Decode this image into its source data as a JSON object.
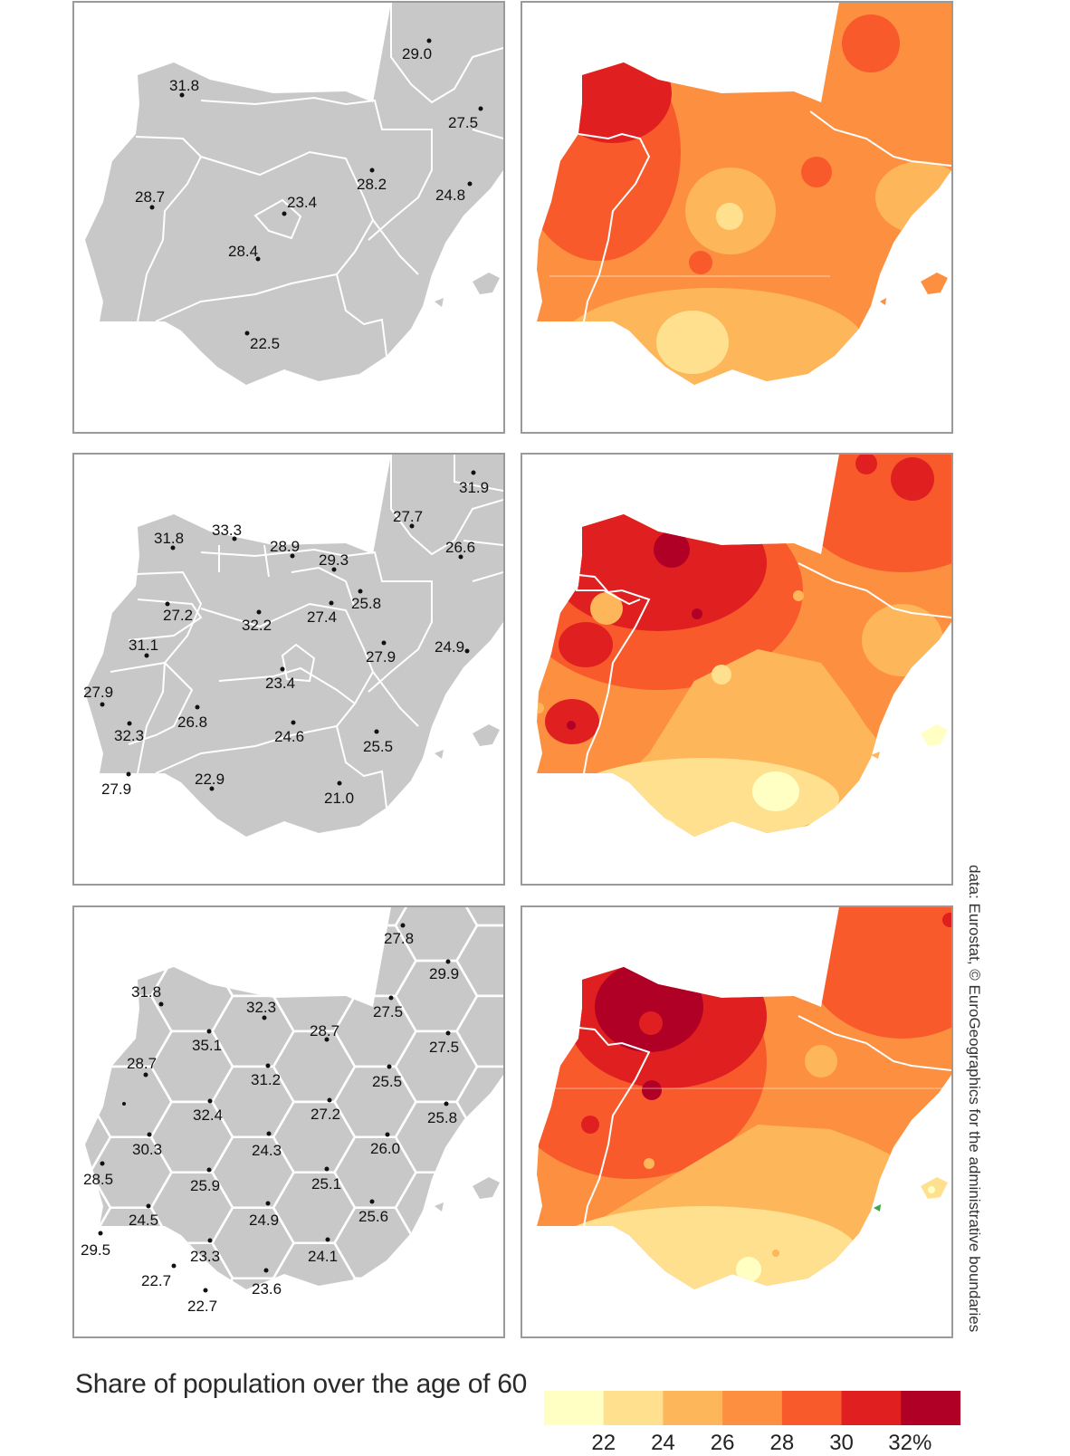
{
  "title": "Share of population over the age of 60",
  "credit": "data: Eurostat, © EuroGeographics for the administrative boundaries",
  "legend": {
    "colors": [
      "#ffffc4",
      "#fee08e",
      "#fdb65a",
      "#fc9040",
      "#f85a2c",
      "#e02020",
      "#b00026"
    ],
    "ticks": [
      "22",
      "24",
      "26",
      "28",
      "30",
      "32%"
    ]
  },
  "maps": {
    "nuts1": [
      {
        "v": "31.8"
      },
      {
        "v": "29.0"
      },
      {
        "v": "27.5"
      },
      {
        "v": "28.2"
      },
      {
        "v": "24.8"
      },
      {
        "v": "28.7"
      },
      {
        "v": "23.4"
      },
      {
        "v": "28.4"
      },
      {
        "v": "22.5"
      }
    ],
    "nuts2": [
      {
        "v": "31.9"
      },
      {
        "v": "27.7"
      },
      {
        "v": "31.8"
      },
      {
        "v": "33.3"
      },
      {
        "v": "28.9"
      },
      {
        "v": "29.3"
      },
      {
        "v": "26.6"
      },
      {
        "v": "27.2"
      },
      {
        "v": "32.2"
      },
      {
        "v": "27.4"
      },
      {
        "v": "25.8"
      },
      {
        "v": "31.1"
      },
      {
        "v": "27.9"
      },
      {
        "v": "24.9"
      },
      {
        "v": "27.9"
      },
      {
        "v": "23.4"
      },
      {
        "v": "32.3"
      },
      {
        "v": "26.8"
      },
      {
        "v": "24.6"
      },
      {
        "v": "25.5"
      },
      {
        "v": "27.9"
      },
      {
        "v": "22.9"
      },
      {
        "v": "21.0"
      }
    ],
    "hex": [
      {
        "v": "27.8"
      },
      {
        "v": "29.9"
      },
      {
        "v": "31.8"
      },
      {
        "v": "32.3"
      },
      {
        "v": "27.5"
      },
      {
        "v": "35.1"
      },
      {
        "v": "28.7"
      },
      {
        "v": "27.5"
      },
      {
        "v": "28.7"
      },
      {
        "v": "31.2"
      },
      {
        "v": "25.5"
      },
      {
        "v": "32.4"
      },
      {
        "v": "27.2"
      },
      {
        "v": "25.8"
      },
      {
        "v": "30.3"
      },
      {
        "v": "24.3"
      },
      {
        "v": "26.0"
      },
      {
        "v": "28.5"
      },
      {
        "v": "25.9"
      },
      {
        "v": "25.1"
      },
      {
        "v": "24.5"
      },
      {
        "v": "24.9"
      },
      {
        "v": "25.6"
      },
      {
        "v": "29.5"
      },
      {
        "v": "23.3"
      },
      {
        "v": "24.1"
      },
      {
        "v": "22.7"
      },
      {
        "v": "23.6"
      },
      {
        "v": "22.7"
      }
    ]
  }
}
